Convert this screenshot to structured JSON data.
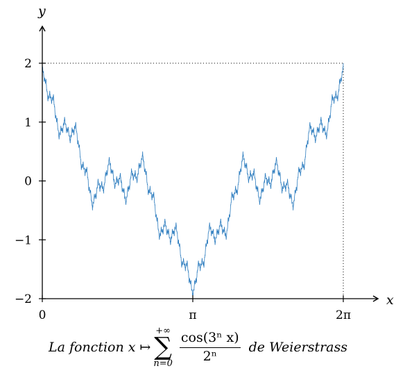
{
  "chart_data": {
    "type": "line",
    "xlabel": "x",
    "ylabel": "y",
    "xlim": [
      0,
      6.2832
    ],
    "ylim": [
      -2,
      2.5
    ],
    "x_ticks": [
      {
        "value": 0,
        "label": "0"
      },
      {
        "value": 3.14159,
        "label": "π"
      },
      {
        "value": 6.28318,
        "label": "2π"
      }
    ],
    "y_ticks": [
      {
        "value": -2,
        "label": "−2"
      },
      {
        "value": -1,
        "label": "−1"
      },
      {
        "value": 0,
        "label": "0"
      },
      {
        "value": 1,
        "label": "1"
      },
      {
        "value": 2,
        "label": "2"
      }
    ],
    "reference_lines": {
      "y": 2,
      "x": 6.28318,
      "style": "dotted"
    },
    "series": [
      {
        "function": "sum_{n=0}^{N} cos(3^n x) / 2^n",
        "terms": 12,
        "samples": 3000,
        "x_range": [
          0,
          6.28318
        ],
        "color": "#2e7dbf"
      }
    ],
    "grid": false,
    "legend": "none"
  },
  "caption": {
    "prefix": "La fonction",
    "var": "x",
    "mapsto": "↦",
    "sum_top": "+∞",
    "sum_symbol": "∑",
    "sum_bottom": "n=0",
    "numerator": "cos(3ⁿ x)",
    "denominator": "2ⁿ",
    "suffix": "de Weierstrass"
  }
}
